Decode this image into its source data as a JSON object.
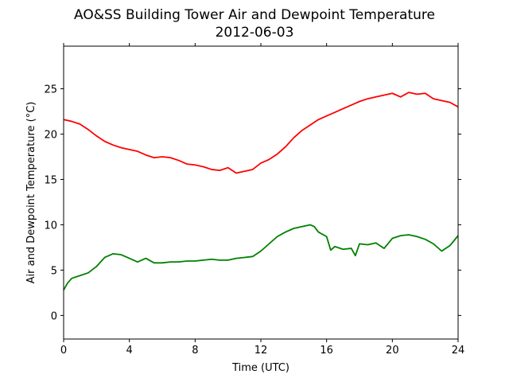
{
  "chart_data": {
    "type": "line",
    "title": "AO&SS Building Tower Air and Dewpoint Temperature",
    "subtitle": "2012-06-03",
    "xlabel": "Time (UTC)",
    "ylabel": "Air and Dewpoint Temperature (°C)",
    "xlim": [
      0,
      24
    ],
    "ylim": [
      -2.6,
      29.7
    ],
    "xticks": [
      0,
      4,
      8,
      12,
      16,
      20,
      24
    ],
    "yticks": [
      0,
      5,
      10,
      15,
      20,
      25
    ],
    "grid": false,
    "legend": "none",
    "series": [
      {
        "color": "#ff0000",
        "x": [
          0,
          0.5,
          1,
          1.5,
          2,
          2.5,
          3,
          3.5,
          4,
          4.5,
          5,
          5.5,
          6,
          6.5,
          7,
          7.5,
          8,
          8.5,
          9,
          9.5,
          10,
          10.5,
          11,
          11.5,
          12,
          12.5,
          13,
          13.5,
          14,
          14.5,
          15,
          15.5,
          16,
          16.5,
          17,
          17.5,
          18,
          18.5,
          19,
          19.5,
          20,
          20.5,
          21,
          21.5,
          22,
          22.5,
          23,
          23.5,
          24
        ],
        "values": [
          21.6,
          21.4,
          21.1,
          20.5,
          19.8,
          19.2,
          18.8,
          18.5,
          18.3,
          18.1,
          17.7,
          17.4,
          17.5,
          17.4,
          17.1,
          16.7,
          16.6,
          16.4,
          16.1,
          16.0,
          16.3,
          15.7,
          15.9,
          16.1,
          16.8,
          17.2,
          17.8,
          18.6,
          19.6,
          20.4,
          21.0,
          21.6,
          22.0,
          22.4,
          22.8,
          23.2,
          23.6,
          23.9,
          24.1,
          24.3,
          24.5,
          24.1,
          24.6,
          24.4,
          24.5,
          23.9,
          23.7,
          23.5,
          23.0
        ]
      },
      {
        "color": "#008000",
        "x": [
          0,
          0.25,
          0.5,
          1,
          1.5,
          2,
          2.25,
          2.5,
          3,
          3.5,
          4,
          4.5,
          5,
          5.5,
          6,
          6.5,
          7,
          7.5,
          8,
          8.5,
          9,
          9.5,
          10,
          10.5,
          11,
          11.5,
          12,
          12.5,
          13,
          13.5,
          14,
          14.5,
          15,
          15.25,
          15.5,
          16,
          16.25,
          16.5,
          17,
          17.5,
          17.75,
          18,
          18.5,
          19,
          19.5,
          20,
          20.5,
          21,
          21.5,
          22,
          22.5,
          23,
          23.5,
          24
        ],
        "values": [
          2.8,
          3.6,
          4.1,
          4.4,
          4.7,
          5.4,
          5.9,
          6.4,
          6.8,
          6.7,
          6.3,
          5.9,
          6.3,
          5.8,
          5.8,
          5.9,
          5.9,
          6.0,
          6.0,
          6.1,
          6.2,
          6.1,
          6.1,
          6.3,
          6.4,
          6.5,
          7.1,
          7.9,
          8.7,
          9.2,
          9.6,
          9.8,
          10.0,
          9.8,
          9.2,
          8.7,
          7.2,
          7.6,
          7.3,
          7.4,
          6.6,
          7.9,
          7.8,
          8.0,
          7.4,
          8.5,
          8.8,
          8.9,
          8.7,
          8.4,
          7.9,
          7.1,
          7.7,
          8.8
        ]
      }
    ]
  }
}
